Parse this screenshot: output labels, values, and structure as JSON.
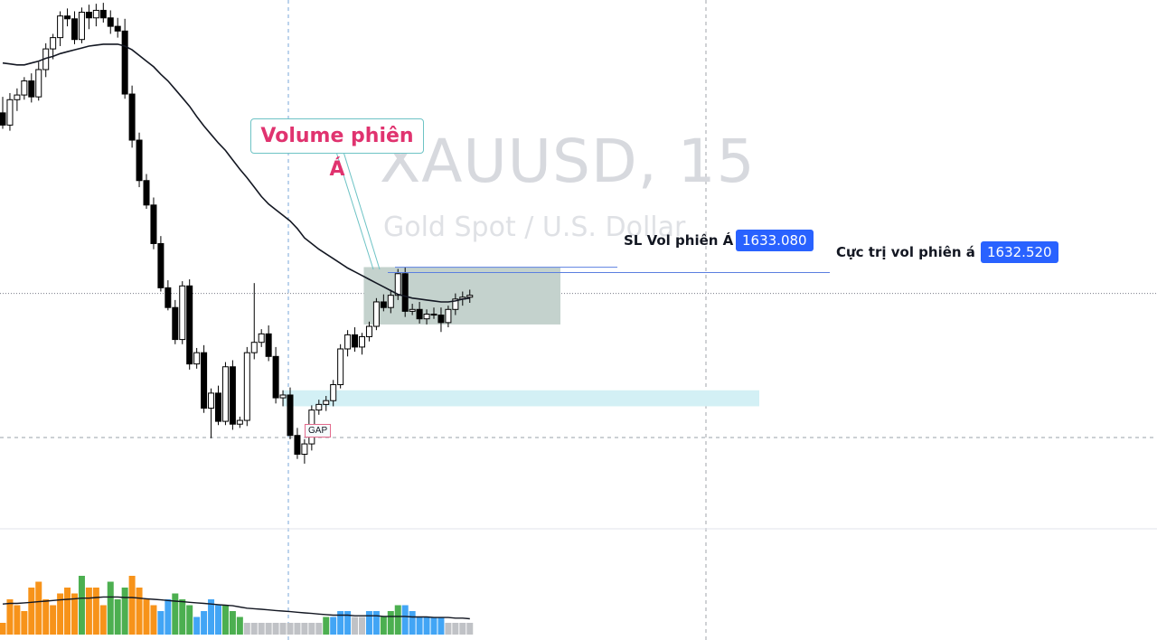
{
  "watermark": {
    "symbol": "XAUUSD, 15",
    "description": "Gold Spot / U.S. Dollar"
  },
  "annotations": {
    "callout": "Volume phiên Á",
    "sl_label": "SL Vol phiên Á",
    "sl_price": "1633.080",
    "extreme_label": "Cực trị vol phiên á",
    "extreme_price": "1632.520",
    "gap_label": "GAP"
  },
  "colors": {
    "bull_body": "#ffffff",
    "bear_body": "#000000",
    "ma": "#131722",
    "range_box": "#c4d2cd",
    "gap_zone": "#d3f0f5",
    "price_tag": "#2962ff",
    "callout_text": "#e0336f",
    "volume_orange": "#f7931a",
    "volume_green": "#4caf50",
    "volume_blue": "#42a5f5",
    "volume_gray": "#c0c2c6"
  },
  "chart_data": {
    "type": "candlestick",
    "symbol": "XAUUSD",
    "timeframe": "15",
    "candles": [
      [
        1649.5,
        1651.2,
        1647.8,
        1648.2
      ],
      [
        1648.2,
        1651.6,
        1647.6,
        1650.9
      ],
      [
        1650.9,
        1652.1,
        1649.7,
        1651.4
      ],
      [
        1651.4,
        1653.3,
        1650.9,
        1652.9
      ],
      [
        1652.9,
        1653.7,
        1650.6,
        1651.2
      ],
      [
        1651.2,
        1654.9,
        1650.8,
        1654.1
      ],
      [
        1654.1,
        1656.9,
        1653.3,
        1656.3
      ],
      [
        1656.3,
        1657.9,
        1655.2,
        1657.5
      ],
      [
        1657.5,
        1660.3,
        1656.6,
        1659.8
      ],
      [
        1659.8,
        1660.6,
        1658.7,
        1659.5
      ],
      [
        1659.5,
        1660.3,
        1656.8,
        1657.3
      ],
      [
        1657.3,
        1660.7,
        1656.9,
        1660.2
      ],
      [
        1660.2,
        1661.0,
        1658.4,
        1659.6
      ],
      [
        1659.6,
        1661.1,
        1658.7,
        1660.4
      ],
      [
        1660.4,
        1661.2,
        1659.1,
        1659.6
      ],
      [
        1659.6,
        1660.4,
        1657.9,
        1658.7
      ],
      [
        1658.7,
        1659.6,
        1657.5,
        1658.2
      ],
      [
        1658.2,
        1659.5,
        1651.0,
        1651.5
      ],
      [
        1651.5,
        1652.4,
        1645.8,
        1646.6
      ],
      [
        1646.6,
        1647.4,
        1641.6,
        1642.3
      ],
      [
        1642.3,
        1643.0,
        1639.3,
        1639.7
      ],
      [
        1639.7,
        1640.5,
        1635.0,
        1635.6
      ],
      [
        1635.6,
        1636.4,
        1630.5,
        1630.9
      ],
      [
        1630.9,
        1631.7,
        1628.5,
        1628.8
      ],
      [
        1628.8,
        1629.6,
        1624.9,
        1625.4
      ],
      [
        1625.4,
        1631.6,
        1624.9,
        1631.1
      ],
      [
        1631.1,
        1631.8,
        1622.2,
        1622.8
      ],
      [
        1622.8,
        1624.5,
        1622.3,
        1624.0
      ],
      [
        1624.0,
        1624.8,
        1617.6,
        1618.1
      ],
      [
        1618.1,
        1620.2,
        1614.9,
        1619.7
      ],
      [
        1619.7,
        1620.5,
        1616.3,
        1616.7
      ],
      [
        1616.7,
        1623.0,
        1616.3,
        1622.5
      ],
      [
        1622.5,
        1623.2,
        1615.8,
        1616.4
      ],
      [
        1616.4,
        1617.2,
        1616.0,
        1616.8
      ],
      [
        1616.8,
        1624.6,
        1616.2,
        1624.0
      ],
      [
        1624.0,
        1631.4,
        1623.3,
        1625.1
      ],
      [
        1625.1,
        1626.5,
        1624.6,
        1626.0
      ],
      [
        1626.0,
        1626.9,
        1623.1,
        1623.6
      ],
      [
        1623.6,
        1624.6,
        1618.6,
        1619.2
      ],
      [
        1619.2,
        1620.0,
        1618.3,
        1619.5
      ],
      [
        1619.5,
        1620.3,
        1614.8,
        1615.2
      ],
      [
        1615.2,
        1616.0,
        1612.7,
        1613.2
      ],
      [
        1613.2,
        1614.8,
        1612.2,
        1614.3
      ],
      [
        1614.3,
        1618.4,
        1613.6,
        1617.9
      ],
      [
        1617.9,
        1619.0,
        1617.4,
        1618.5
      ],
      [
        1618.5,
        1619.4,
        1617.8,
        1618.9
      ],
      [
        1618.9,
        1621.1,
        1618.3,
        1620.6
      ],
      [
        1620.6,
        1624.9,
        1620.2,
        1624.4
      ],
      [
        1624.4,
        1626.4,
        1623.6,
        1625.9
      ],
      [
        1625.9,
        1626.7,
        1624.1,
        1624.6
      ],
      [
        1624.6,
        1626.1,
        1623.8,
        1625.7
      ],
      [
        1625.7,
        1627.3,
        1625.2,
        1626.8
      ],
      [
        1626.8,
        1629.8,
        1626.4,
        1629.4
      ],
      [
        1629.4,
        1630.2,
        1628.4,
        1628.8
      ],
      [
        1628.8,
        1630.7,
        1628.2,
        1630.1
      ],
      [
        1630.1,
        1632.9,
        1629.6,
        1632.4
      ],
      [
        1632.4,
        1633.1,
        1627.8,
        1628.4
      ],
      [
        1628.4,
        1629.2,
        1628.0,
        1628.6
      ],
      [
        1628.6,
        1629.4,
        1627.1,
        1627.6
      ],
      [
        1627.6,
        1628.6,
        1627.0,
        1628.1
      ],
      [
        1628.1,
        1628.8,
        1627.6,
        1628.0
      ],
      [
        1628.0,
        1628.8,
        1626.2,
        1627.2
      ],
      [
        1627.2,
        1629.0,
        1626.7,
        1628.6
      ],
      [
        1628.6,
        1630.3,
        1628.0,
        1629.7
      ],
      [
        1629.7,
        1630.5,
        1629.0,
        1629.9
      ],
      [
        1629.9,
        1630.7,
        1629.3,
        1630.1
      ]
    ],
    "ma_line": [
      1654.8,
      1654.7,
      1654.6,
      1654.6,
      1654.8,
      1655.0,
      1655.3,
      1655.5,
      1655.8,
      1656.0,
      1656.2,
      1656.4,
      1656.6,
      1656.7,
      1656.8,
      1656.8,
      1656.8,
      1656.6,
      1656.2,
      1655.6,
      1655.0,
      1654.4,
      1653.6,
      1652.9,
      1652.0,
      1651.1,
      1650.2,
      1649.1,
      1648.1,
      1647.2,
      1646.3,
      1645.5,
      1644.5,
      1643.5,
      1642.6,
      1641.6,
      1640.6,
      1639.8,
      1639.2,
      1638.6,
      1638.0,
      1637.2,
      1636.2,
      1635.6,
      1635.0,
      1634.5,
      1634.0,
      1633.5,
      1633.0,
      1632.6,
      1632.2,
      1631.8,
      1631.4,
      1631.0,
      1630.6,
      1630.2,
      1630.0,
      1629.8,
      1629.7,
      1629.6,
      1629.5,
      1629.4,
      1629.4,
      1629.5,
      1629.7,
      1629.8
    ],
    "volume": [
      2,
      6,
      5,
      4,
      8,
      9,
      6,
      5,
      7,
      8,
      7,
      10,
      8,
      8,
      5,
      9,
      6,
      8,
      10,
      8,
      6,
      5,
      4,
      6,
      7,
      6,
      5,
      3,
      4,
      6,
      5,
      5,
      4,
      3,
      2,
      2,
      2,
      2,
      2,
      2,
      2,
      2,
      2,
      2,
      2,
      3,
      3,
      4,
      4,
      3,
      3,
      4,
      4,
      3,
      4,
      5,
      5,
      4,
      3,
      3,
      3,
      3,
      2,
      2,
      2,
      2
    ],
    "volume_colors": [
      "orange",
      "orange",
      "orange",
      "orange",
      "orange",
      "orange",
      "orange",
      "orange",
      "orange",
      "orange",
      "orange",
      "green",
      "orange",
      "orange",
      "orange",
      "green",
      "green",
      "green",
      "orange",
      "orange",
      "orange",
      "orange",
      "blue",
      "blue",
      "green",
      "green",
      "green",
      "blue",
      "blue",
      "blue",
      "blue",
      "green",
      "green",
      "green",
      "gray",
      "gray",
      "gray",
      "gray",
      "gray",
      "gray",
      "gray",
      "gray",
      "gray",
      "gray",
      "gray",
      "green",
      "blue",
      "blue",
      "blue",
      "gray",
      "gray",
      "blue",
      "blue",
      "green",
      "green",
      "green",
      "blue",
      "blue",
      "blue",
      "blue",
      "blue",
      "blue",
      "gray",
      "gray",
      "gray",
      "gray"
    ],
    "volume_ma": [
      5.2,
      5.3,
      5.3,
      5.4,
      5.5,
      5.6,
      5.7,
      5.8,
      5.9,
      6.0,
      6.1,
      6.2,
      6.2,
      6.3,
      6.4,
      6.4,
      6.4,
      6.3,
      6.3,
      6.2,
      6.1,
      6.0,
      5.9,
      5.8,
      5.7,
      5.6,
      5.5,
      5.4,
      5.3,
      5.2,
      5.1,
      5.0,
      4.9,
      4.7,
      4.5,
      4.4,
      4.3,
      4.2,
      4.1,
      4.0,
      3.9,
      3.8,
      3.7,
      3.6,
      3.5,
      3.4,
      3.3,
      3.3,
      3.3,
      3.2,
      3.2,
      3.2,
      3.2,
      3.1,
      3.1,
      3.1,
      3.1,
      3.0,
      3.0,
      3.0,
      2.9,
      2.9,
      2.9,
      2.8,
      2.8,
      2.7
    ],
    "levels": {
      "sl_vol": 1633.08,
      "extreme_vol": 1632.52,
      "last_price": 1630.3
    },
    "range_box": {
      "high": 1633.1,
      "low": 1627.0,
      "start_index": 51,
      "end_index": 75
    },
    "gap_zone": {
      "high": 1620.0,
      "low": 1618.3,
      "start_index": 38,
      "end_index": 100
    }
  }
}
